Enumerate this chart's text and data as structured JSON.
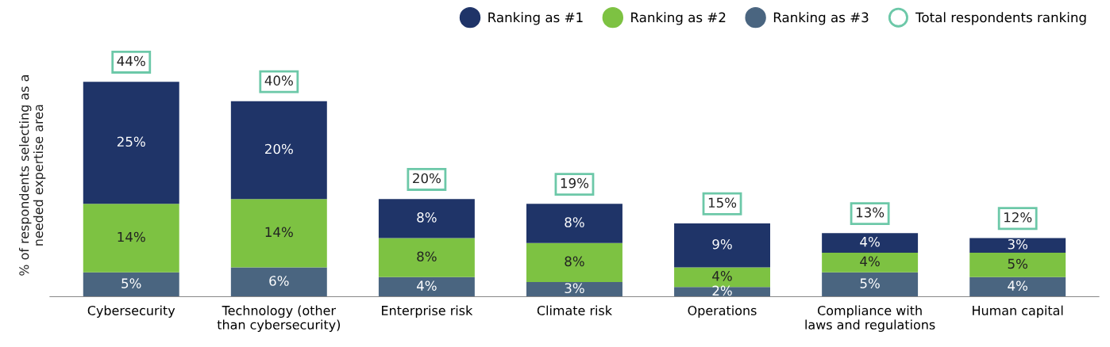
{
  "chart_data": {
    "type": "bar",
    "stacked": true,
    "ylabel": "% of respondents selecting as a\nneeded expertise area",
    "categories": [
      "Cybersecurity",
      "Technology (other\nthan cybersecurity)",
      "Enterprise risk",
      "Climate risk",
      "Operations",
      "Compliance with\nlaws and regulations",
      "Human capital"
    ],
    "series": [
      {
        "name": "Ranking as #3",
        "color": "#4a6580",
        "values": [
          5,
          6,
          4,
          3,
          2,
          5,
          4
        ],
        "value_labels": [
          "5%",
          "6%",
          "4%",
          "3%",
          "2%",
          "5%",
          "4%"
        ]
      },
      {
        "name": "Ranking as #2",
        "color": "#7dc242",
        "values": [
          14,
          14,
          8,
          8,
          4,
          4,
          5
        ],
        "value_labels": [
          "14%",
          "14%",
          "8%",
          "8%",
          "4%",
          "4%",
          "5%"
        ]
      },
      {
        "name": "Ranking as #1",
        "color": "#1f3468",
        "values": [
          25,
          20,
          8,
          8,
          9,
          4,
          3
        ],
        "value_labels": [
          "25%",
          "20%",
          "8%",
          "8%",
          "9%",
          "4%",
          "3%"
        ]
      }
    ],
    "totals": [
      "44%",
      "40%",
      "20%",
      "19%",
      "15%",
      "13%",
      "12%"
    ],
    "annotations": [
      "Total respondents ranking"
    ],
    "legend": "top right",
    "grid": false,
    "tick_labels": "x"
  }
}
